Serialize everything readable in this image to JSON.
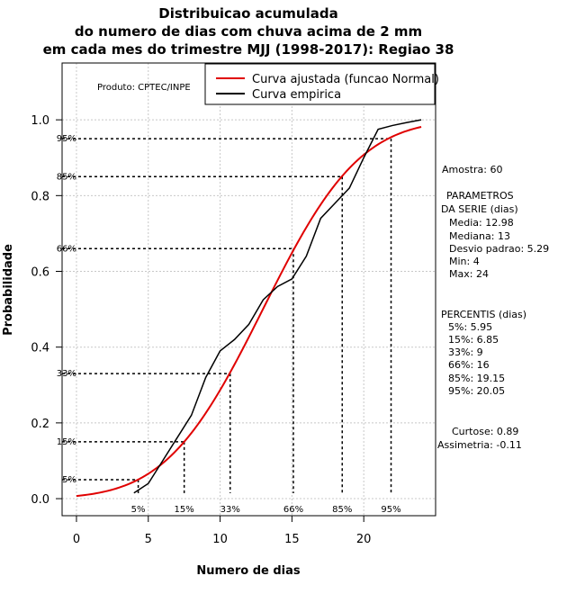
{
  "chart_data": {
    "type": "line",
    "title_lines": [
      "Distribuicao acumulada",
      "do numero de dias com chuva acima de 2 mm",
      "em cada mes do trimestre MJJ (1998-2017): Regiao 38"
    ],
    "xlabel": "Numero de dias",
    "ylabel": "Probabilidade",
    "xlim": [
      -1,
      25
    ],
    "ylim": [
      -0.045,
      1.15
    ],
    "xticks": [
      "0",
      "5",
      "10",
      "15",
      "20"
    ],
    "xtick_values": [
      0,
      5,
      10,
      15,
      20
    ],
    "yticks": [
      "0.0",
      "0.2",
      "0.4",
      "0.6",
      "0.8",
      "1.0"
    ],
    "ytick_values": [
      0,
      0.2,
      0.4,
      0.6,
      0.8,
      1.0
    ],
    "grid": true,
    "product_label": "Produto: CPTEC/INPE",
    "legend": {
      "position": "top-right",
      "entries": [
        {
          "label": "Curva ajustada (funcao Normal)",
          "color": "#e00000"
        },
        {
          "label": "Curva empirica",
          "color": "#000000"
        }
      ]
    },
    "series": [
      {
        "name": "Curva ajustada (funcao Normal)",
        "color": "#e00000",
        "distribution": "normal",
        "mean": 12.98,
        "sd": 5.29,
        "x_range": [
          0,
          24
        ]
      },
      {
        "name": "Curva empirica",
        "color": "#000000",
        "x": [
          4,
          5,
          6,
          7,
          8,
          9,
          10,
          11,
          12,
          13,
          14,
          15,
          16,
          17,
          18,
          19,
          20,
          21,
          22,
          23,
          24
        ],
        "y": [
          0.015,
          0.04,
          0.1,
          0.16,
          0.22,
          0.32,
          0.39,
          0.42,
          0.46,
          0.525,
          0.56,
          0.58,
          0.64,
          0.74,
          0.78,
          0.82,
          0.9,
          0.975,
          0.985,
          0.993,
          1.0
        ]
      }
    ],
    "percentile_markers": [
      {
        "label": "5%",
        "y_label": "5%",
        "prob": 0.05,
        "x": 4.3
      },
      {
        "label": "15%",
        "y_label": "15%",
        "prob": 0.15,
        "x": 7.5
      },
      {
        "label": "33%",
        "y_label": "33%",
        "prob": 0.33,
        "x": 10.7
      },
      {
        "label": "66%",
        "y_label": "66%",
        "prob": 0.66,
        "x": 15.1
      },
      {
        "label": "85%",
        "y_label": "85%",
        "prob": 0.85,
        "x": 18.5
      },
      {
        "label": "95%",
        "y_label": "95%",
        "prob": 0.95,
        "x": 21.9
      }
    ]
  },
  "side_panel": {
    "amostra": "Amostra: 60",
    "parametros_title_1": "PARAMETROS",
    "parametros_title_2": "DA SERIE (dias)",
    "parametros": [
      "Media: 12.98",
      "Mediana: 13",
      "Desvio padrao: 5.29",
      "Min: 4",
      "Max: 24"
    ],
    "percentis_title": "PERCENTIS (dias)",
    "percentis": [
      "5%: 5.95",
      "15%: 6.85",
      "33%: 9",
      "66%: 16",
      "85%: 19.15",
      "95%: 20.05"
    ],
    "curtose": "Curtose: 0.89",
    "assimetria": "Assimetria: -0.11"
  }
}
